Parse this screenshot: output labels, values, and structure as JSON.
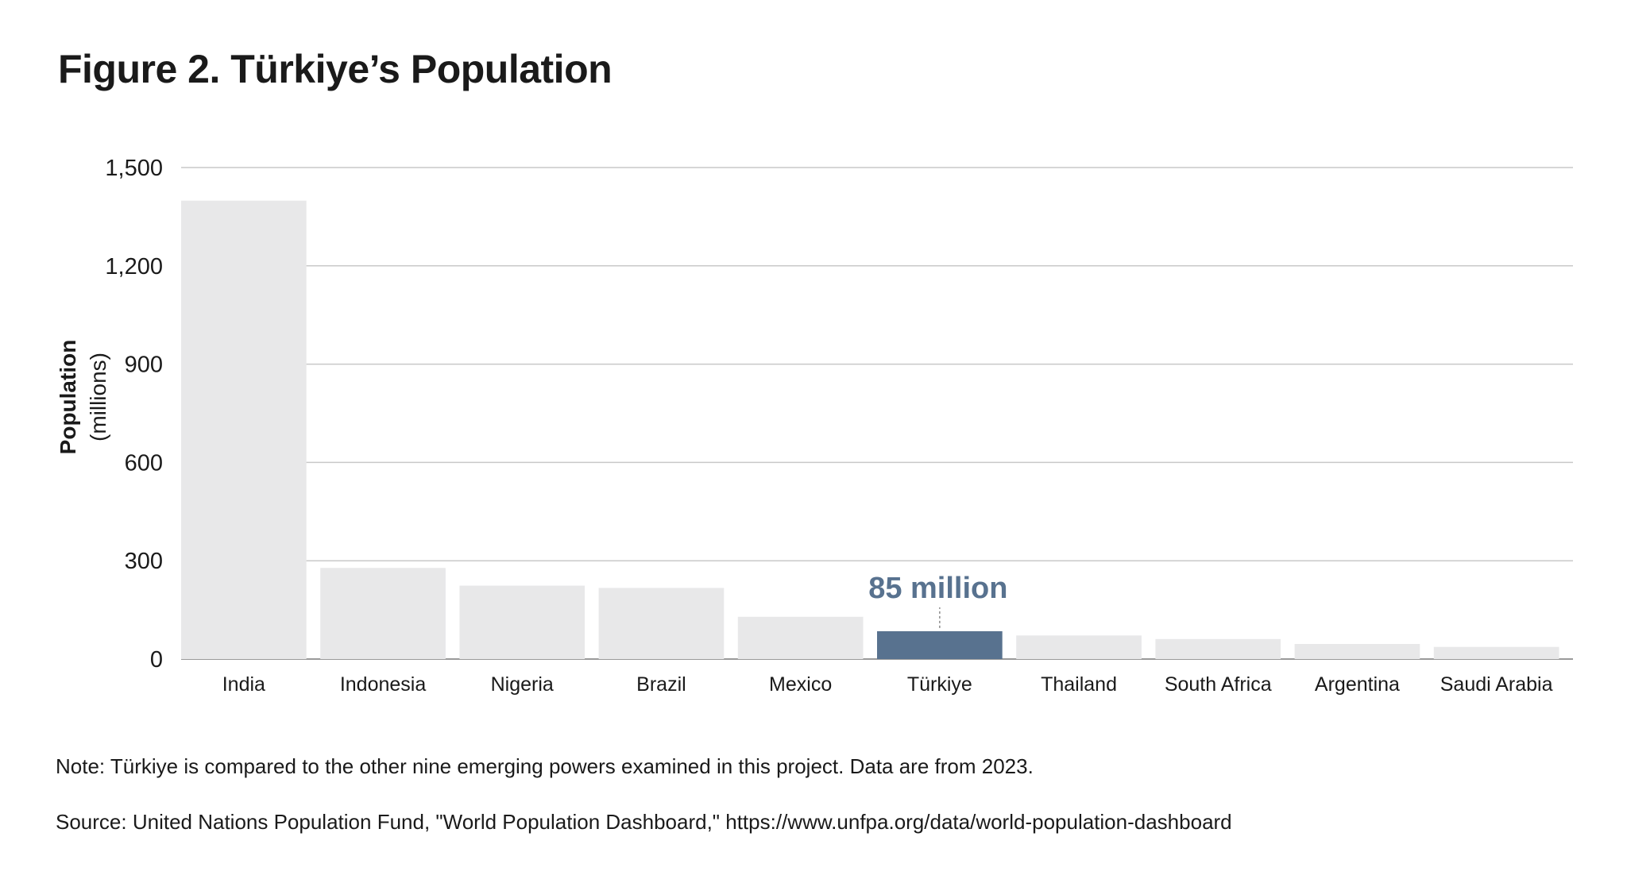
{
  "title": "Figure 2. Türkiye’s Population",
  "note": "Note: Türkiye is compared to the other nine emerging powers examined in this project. Data are from 2023.",
  "source": "Source: United Nations Population Fund, \"World Population Dashboard,\" https://www.unfpa.org/data/world-population-dashboard",
  "colors": {
    "bar": "#e8e8e9",
    "highlight": "#58728f",
    "grid": "#c8c8c8",
    "axis": "#9a9a9a"
  },
  "chart_data": {
    "type": "bar",
    "ylabel": "Population",
    "ylabel_unit": "(millions)",
    "ylim": [
      0,
      1500
    ],
    "yticks": [
      0,
      300,
      600,
      900,
      1200,
      1500
    ],
    "ytick_labels": [
      "0",
      "300",
      "600",
      "900",
      "1,200",
      "1,500"
    ],
    "grid": true,
    "categories": [
      "India",
      "Indonesia",
      "Nigeria",
      "Brazil",
      "Mexico",
      "Türkiye",
      "Thailand",
      "South Africa",
      "Argentina",
      "Saudi Arabia"
    ],
    "values": [
      1399,
      278,
      224,
      217,
      129,
      85,
      72,
      61,
      46,
      37
    ],
    "highlight_category": "Türkiye",
    "annotation": {
      "category": "Türkiye",
      "text": "85 million"
    }
  }
}
